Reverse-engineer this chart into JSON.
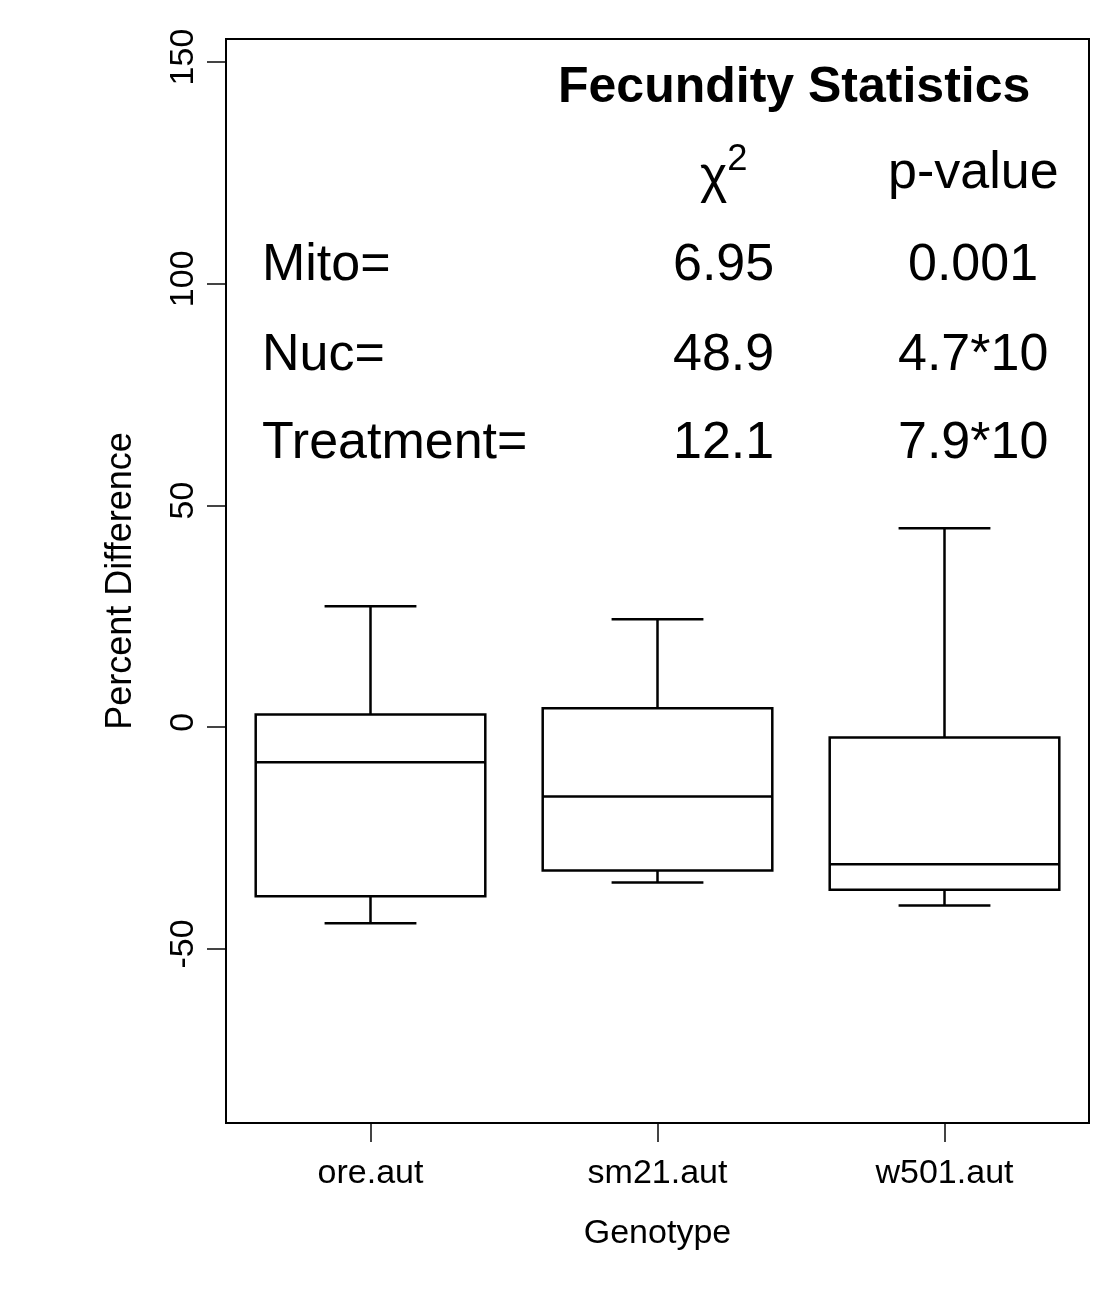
{
  "chart_data": {
    "type": "box",
    "title": "Fecundity Statistics",
    "xlabel": "Genotype",
    "ylabel": "Percent Difference",
    "categories": [
      "ore.aut",
      "sm21.aut",
      "w501.aut"
    ],
    "boxes": [
      {
        "low": -44.2,
        "q1": -38.1,
        "median": -7.9,
        "q3": 2.9,
        "high": 27.3
      },
      {
        "low": -35.0,
        "q1": -32.3,
        "median": -15.6,
        "q3": 4.3,
        "high": 24.4
      },
      {
        "low": -40.2,
        "q1": -36.6,
        "median": -30.9,
        "q3": -2.3,
        "high": 44.9
      }
    ],
    "color": "#000000",
    "ylim": [
      -89,
      155
    ],
    "yticks": [
      -50,
      0,
      50,
      100,
      150
    ],
    "annotations": [
      "χ$^{2}$",
      "p-value",
      "Mito=",
      "6.95",
      "0.001",
      "Nuc=",
      "48.9",
      "4.7*10",
      "Treatment=",
      "12.1",
      "7.9*10"
    ]
  }
}
